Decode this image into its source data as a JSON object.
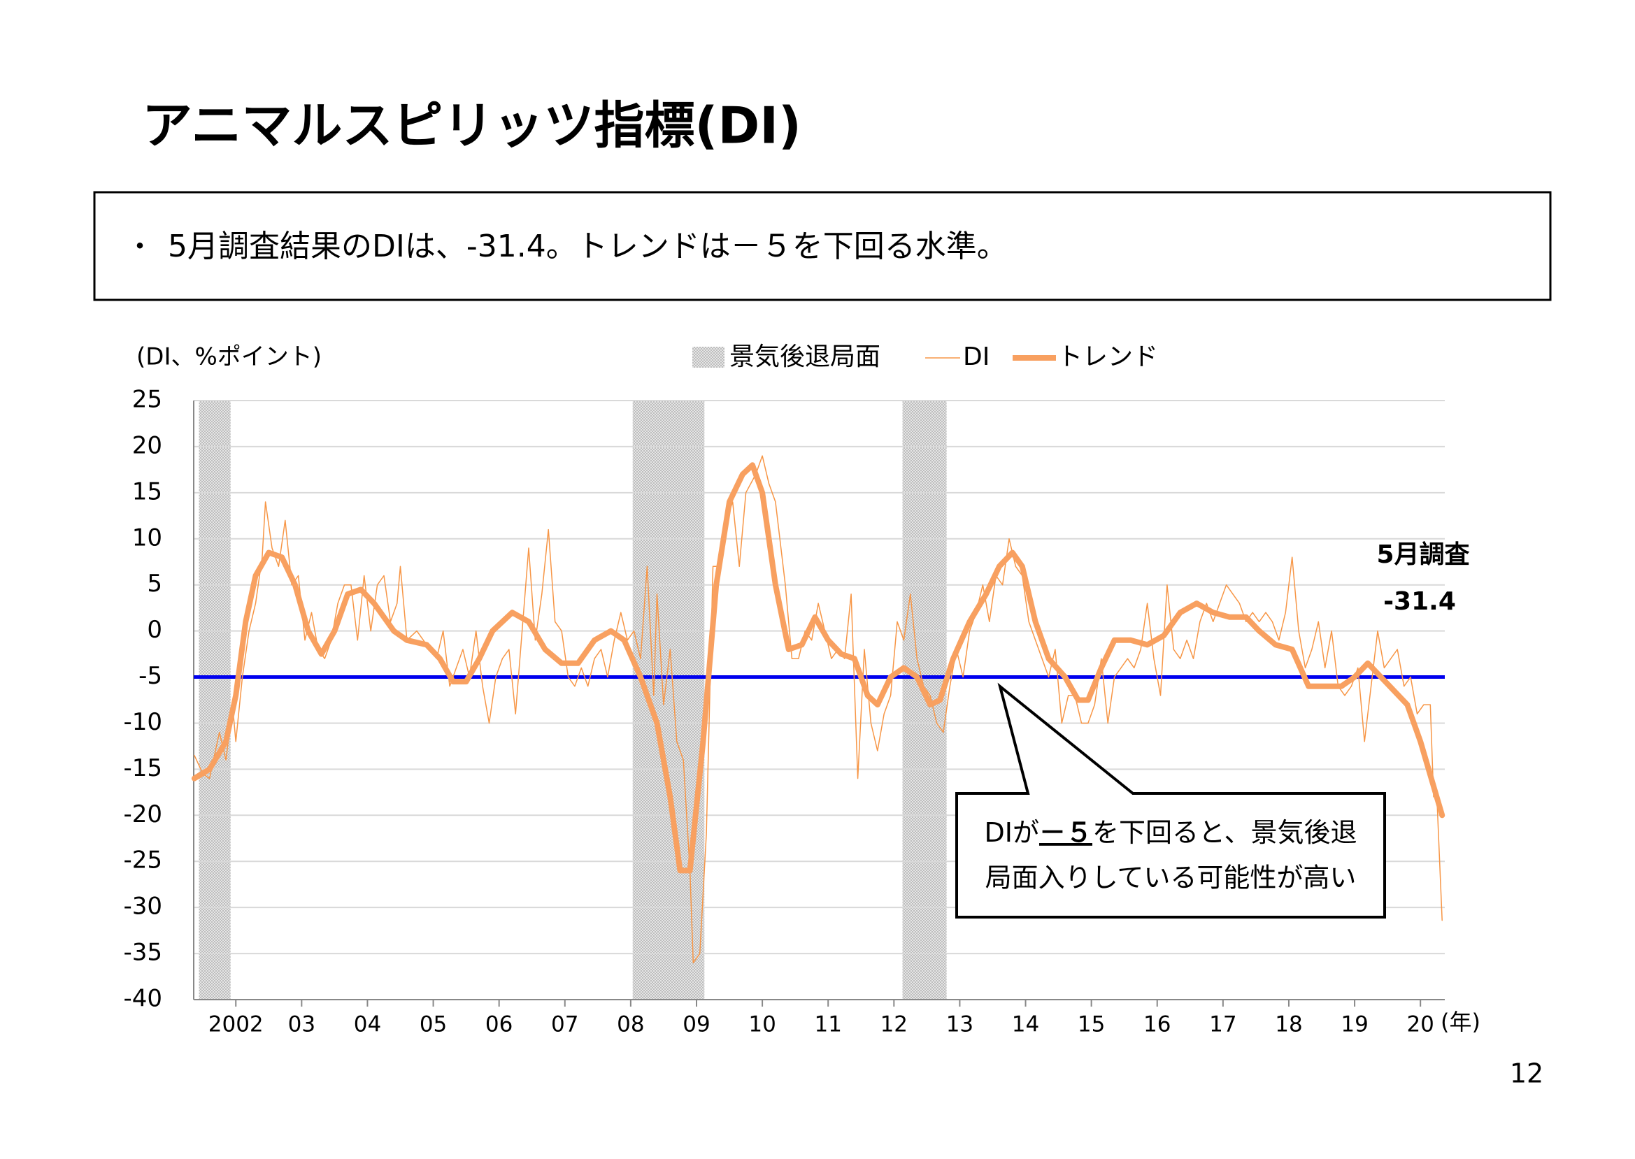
{
  "title": "アニマルスピリッツ指標(DI)",
  "summary": {
    "bullet": "・",
    "text": "5月調査結果のDIは、-31.4。トレンドは－５を下回る水準。"
  },
  "page_number": "12",
  "chart_data": {
    "type": "line",
    "y_axis_label": "(DI、%ポイント)",
    "x_axis_label": "(年)",
    "recession_legend": "景気後退局面",
    "recession_color": "#d0d0d0",
    "recessions": [
      [
        2001.44,
        2001.92
      ],
      [
        2008.03,
        2009.12
      ],
      [
        2012.13,
        2012.8
      ]
    ],
    "xlim": [
      2001.36,
      2020.37
    ],
    "xticks": [
      2002,
      {
        "value": 2003,
        "label": "03"
      },
      {
        "value": 2004,
        "label": "04"
      },
      {
        "value": 2005,
        "label": "05"
      },
      {
        "value": 2006,
        "label": "06"
      },
      {
        "value": 2007,
        "label": "07"
      },
      {
        "value": 2008,
        "label": "08"
      },
      {
        "value": 2009,
        "label": "09"
      },
      {
        "value": 2010,
        "label": "10"
      },
      {
        "value": 2011,
        "label": "11"
      },
      {
        "value": 2012,
        "label": "12"
      },
      {
        "value": 2013,
        "label": "13"
      },
      {
        "value": 2014,
        "label": "14"
      },
      {
        "value": 2015,
        "label": "15"
      },
      {
        "value": 2016,
        "label": "16"
      },
      {
        "value": 2017,
        "label": "17"
      },
      {
        "value": 2018,
        "label": "18"
      },
      {
        "value": 2019,
        "label": "19"
      },
      {
        "value": 2020,
        "label": "20"
      }
    ],
    "ylim": [
      -40,
      25
    ],
    "yticks": [
      -40,
      -35,
      -30,
      -25,
      -20,
      -15,
      -10,
      -5,
      0,
      5,
      10,
      15,
      20,
      25
    ],
    "grid": true,
    "reference_line": {
      "value": -5,
      "color": "#0000ee"
    },
    "series": [
      {
        "name": "DI",
        "color": "#f79646",
        "width": 1.5,
        "x": [
          2001.37,
          2001.5,
          2001.6,
          2001.75,
          2001.85,
          2001.95,
          2002.0,
          2002.1,
          2002.2,
          2002.3,
          2002.4,
          2002.45,
          2002.55,
          2002.65,
          2002.75,
          2002.85,
          2002.95,
          2003.05,
          2003.15,
          2003.25,
          2003.35,
          2003.45,
          2003.55,
          2003.65,
          2003.75,
          2003.85,
          2003.95,
          2004.05,
          2004.15,
          2004.25,
          2004.35,
          2004.45,
          2004.5,
          2004.6,
          2004.75,
          2004.85,
          2004.95,
          2005.05,
          2005.15,
          2005.25,
          2005.35,
          2005.45,
          2005.55,
          2005.65,
          2005.75,
          2005.85,
          2005.95,
          2006.05,
          2006.15,
          2006.25,
          2006.35,
          2006.45,
          2006.55,
          2006.65,
          2006.75,
          2006.85,
          2006.95,
          2007.05,
          2007.15,
          2007.25,
          2007.35,
          2007.45,
          2007.55,
          2007.65,
          2007.75,
          2007.85,
          2007.95,
          2008.05,
          2008.15,
          2008.25,
          2008.35,
          2008.4,
          2008.5,
          2008.6,
          2008.7,
          2008.8,
          2008.9,
          2008.95,
          2009.05,
          2009.15,
          2009.25,
          2009.35,
          2009.45,
          2009.55,
          2009.65,
          2009.75,
          2009.9,
          2010.0,
          2010.1,
          2010.2,
          2010.35,
          2010.45,
          2010.55,
          2010.65,
          2010.75,
          2010.85,
          2010.95,
          2011.05,
          2011.15,
          2011.25,
          2011.35,
          2011.45,
          2011.55,
          2011.65,
          2011.75,
          2011.85,
          2011.95,
          2012.05,
          2012.15,
          2012.25,
          2012.35,
          2012.45,
          2012.55,
          2012.65,
          2012.75,
          2012.85,
          2012.95,
          2013.05,
          2013.15,
          2013.25,
          2013.35,
          2013.45,
          2013.55,
          2013.65,
          2013.75,
          2013.85,
          2013.95,
          2014.05,
          2014.15,
          2014.25,
          2014.35,
          2014.45,
          2014.55,
          2014.65,
          2014.75,
          2014.85,
          2014.95,
          2015.05,
          2015.15,
          2015.25,
          2015.35,
          2015.45,
          2015.55,
          2015.65,
          2015.75,
          2015.85,
          2015.95,
          2016.05,
          2016.15,
          2016.25,
          2016.35,
          2016.45,
          2016.55,
          2016.65,
          2016.75,
          2016.85,
          2016.95,
          2017.05,
          2017.15,
          2017.25,
          2017.35,
          2017.45,
          2017.55,
          2017.65,
          2017.75,
          2017.85,
          2017.95,
          2018.05,
          2018.15,
          2018.25,
          2018.35,
          2018.45,
          2018.55,
          2018.65,
          2018.75,
          2018.85,
          2018.95,
          2019.05,
          2019.15,
          2019.25,
          2019.35,
          2019.45,
          2019.55,
          2019.65,
          2019.75,
          2019.85,
          2019.95,
          2020.05,
          2020.15,
          2020.2,
          2020.25,
          2020.33
        ],
        "values": [
          -13.5,
          -15.5,
          -16,
          -11,
          -14,
          -8,
          -12,
          -5,
          0,
          3,
          8,
          14,
          9,
          7,
          12,
          5,
          6,
          -1,
          2,
          -2,
          -3,
          -1,
          3,
          5,
          5,
          -1,
          6,
          0,
          5,
          6,
          1,
          3,
          7,
          -1,
          0,
          -1,
          -2,
          -3,
          0,
          -6,
          -4,
          -2,
          -5,
          0,
          -6,
          -10,
          -5,
          -3,
          -2,
          -9,
          0,
          9,
          -1,
          4,
          11,
          1,
          0,
          -5,
          -6,
          -4,
          -6,
          -3,
          -2,
          -5,
          -1,
          2,
          -1,
          0,
          -3,
          7,
          -7,
          4,
          -8,
          -2,
          -12,
          -14,
          -26,
          -36,
          -35,
          -22,
          7,
          7,
          12,
          14,
          7,
          15,
          17,
          19,
          16,
          14,
          5,
          -3,
          -3,
          0,
          -1,
          3,
          0,
          -3,
          -2,
          -3,
          4,
          -16,
          -2,
          -10,
          -13,
          -9,
          -7,
          1,
          -1,
          4,
          -3,
          -6,
          -7,
          -10,
          -11,
          -6,
          -2,
          -5,
          0,
          2,
          5,
          1,
          6,
          5,
          10,
          7,
          6,
          1,
          -1,
          -3,
          -5,
          -2,
          -10,
          -7,
          -7,
          -10,
          -10,
          -8,
          -3,
          -10,
          -5,
          -4,
          -3,
          -4,
          -2,
          3,
          -3,
          -7,
          5,
          -2,
          -3,
          -1,
          -3,
          1,
          3,
          1,
          3,
          5,
          4,
          3,
          1,
          2,
          1,
          2,
          1,
          -1,
          2,
          8,
          0,
          -4,
          -2,
          1,
          -4,
          0,
          -6,
          -7,
          -6,
          -4,
          -12,
          -6,
          0,
          -4,
          -3,
          -2,
          -6,
          -5,
          -9,
          -8,
          -8,
          -18,
          -18,
          -31.4
        ]
      },
      {
        "name": "トレンド",
        "color": "#f8a060",
        "width": 8,
        "x": [
          2001.37,
          2001.6,
          2001.85,
          2002.0,
          2002.15,
          2002.3,
          2002.5,
          2002.7,
          2002.9,
          2003.1,
          2003.3,
          2003.5,
          2003.7,
          2003.9,
          2004.1,
          2004.4,
          2004.6,
          2004.9,
          2005.1,
          2005.3,
          2005.5,
          2005.7,
          2005.9,
          2006.2,
          2006.45,
          2006.7,
          2006.95,
          2007.2,
          2007.45,
          2007.7,
          2007.9,
          2008.15,
          2008.4,
          2008.6,
          2008.75,
          2008.9,
          2009.1,
          2009.3,
          2009.5,
          2009.7,
          2009.85,
          2010.0,
          2010.2,
          2010.4,
          2010.6,
          2010.8,
          2011.0,
          2011.2,
          2011.4,
          2011.6,
          2011.75,
          2011.95,
          2012.15,
          2012.35,
          2012.55,
          2012.7,
          2012.9,
          2013.15,
          2013.4,
          2013.6,
          2013.8,
          2013.95,
          2014.15,
          2014.35,
          2014.6,
          2014.8,
          2014.95,
          2015.15,
          2015.35,
          2015.6,
          2015.85,
          2016.1,
          2016.35,
          2016.6,
          2016.85,
          2017.1,
          2017.35,
          2017.55,
          2017.8,
          2018.05,
          2018.3,
          2018.55,
          2018.8,
          2019.0,
          2019.2,
          2019.4,
          2019.6,
          2019.8,
          2020.0,
          2020.33
        ],
        "values": [
          -16,
          -15,
          -12,
          -7,
          1,
          6,
          8.5,
          8,
          5,
          0,
          -2.5,
          0,
          4,
          4.5,
          3,
          0,
          -1,
          -1.5,
          -3,
          -5.5,
          -5.5,
          -3,
          0,
          2,
          1,
          -2,
          -3.5,
          -3.5,
          -1,
          0,
          -1,
          -5,
          -10,
          -18,
          -26,
          -26,
          -12,
          5,
          14,
          17,
          18,
          15,
          5,
          -2,
          -1.5,
          1.5,
          -1,
          -2.5,
          -3,
          -7,
          -8,
          -5,
          -4,
          -5,
          -8,
          -7.5,
          -3,
          1,
          4,
          7,
          8.5,
          7,
          1,
          -3,
          -5,
          -7.5,
          -7.5,
          -4,
          -1,
          -1,
          -1.5,
          -0.5,
          2,
          3,
          2,
          1.5,
          1.5,
          0,
          -1.5,
          -2,
          -6,
          -6,
          -6,
          -5,
          -3.5,
          -5,
          -6.5,
          -8,
          -12,
          -20
        ]
      }
    ],
    "annotations": [
      {
        "text": "5月調査"
      },
      {
        "text": "-31.4"
      }
    ],
    "callout": {
      "parts": [
        "DIが",
        "－５",
        "を下回ると、景気後退"
      ],
      "line2": "局面入りしている可能性が高い"
    }
  }
}
